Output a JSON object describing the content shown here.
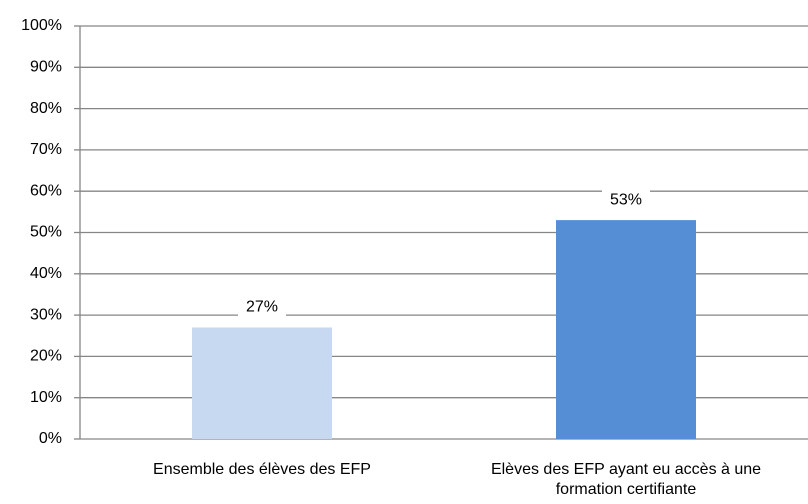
{
  "chart_data": {
    "type": "bar",
    "categories": [
      "Ensemble des élèves des EFP",
      "Elèves des EFP ayant eu accès à une formation certifiante"
    ],
    "values": [
      27,
      53
    ],
    "value_labels": [
      "27%",
      "53%"
    ],
    "colors": [
      "#c6d9f1",
      "#558ed5"
    ],
    "ylim": [
      0,
      100
    ],
    "yticks": [
      {
        "value": 0,
        "label": "0%"
      },
      {
        "value": 10,
        "label": "10%"
      },
      {
        "value": 20,
        "label": "20%"
      },
      {
        "value": 30,
        "label": "30%"
      },
      {
        "value": 40,
        "label": "40%"
      },
      {
        "value": 50,
        "label": "50%"
      },
      {
        "value": 60,
        "label": "60%"
      },
      {
        "value": 70,
        "label": "70%"
      },
      {
        "value": 80,
        "label": "80%"
      },
      {
        "value": 90,
        "label": "90%"
      },
      {
        "value": 100,
        "label": "100%"
      }
    ],
    "grid": true
  }
}
